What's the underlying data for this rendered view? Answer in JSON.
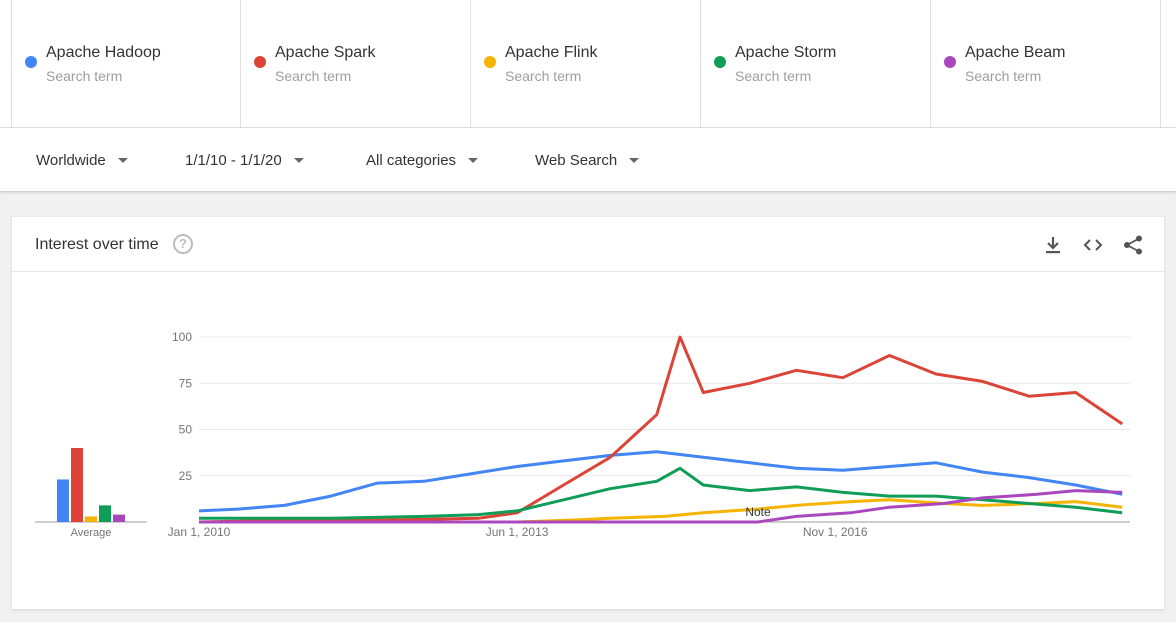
{
  "search_terms": [
    {
      "name": "Apache Hadoop",
      "sub": "Search term",
      "color": "#4285f4"
    },
    {
      "name": "Apache Spark",
      "sub": "Search term",
      "color": "#db4437"
    },
    {
      "name": "Apache Flink",
      "sub": "Search term",
      "color": "#f4b400"
    },
    {
      "name": "Apache Storm",
      "sub": "Search term",
      "color": "#0f9d58"
    },
    {
      "name": "Apache Beam",
      "sub": "Search term",
      "color": "#ab47bc"
    }
  ],
  "filters": {
    "region": "Worldwide",
    "date_range": "1/1/10 - 1/1/20",
    "category": "All categories",
    "search_type": "Web Search"
  },
  "card": {
    "title": "Interest over time",
    "help_icon": "help-circle-icon",
    "download_icon": "download-icon",
    "embed_icon": "embed-code-icon",
    "share_icon": "share-icon"
  },
  "chart_data": {
    "type": "line",
    "y_ticks": [
      "100",
      "75",
      "50",
      "25"
    ],
    "ylim": [
      0,
      100
    ],
    "x_tick_labels": [
      "Jan 1, 2010",
      "Jun 1, 2013",
      "Nov 1, 2016"
    ],
    "x_range": [
      "2010-01",
      "2020-01"
    ],
    "grid": true,
    "note_label": "Note",
    "average_label": "Average",
    "averages": [
      {
        "name": "Apache Hadoop",
        "value": 23
      },
      {
        "name": "Apache Spark",
        "value": 40
      },
      {
        "name": "Apache Flink",
        "value": 3
      },
      {
        "name": "Apache Storm",
        "value": 9
      },
      {
        "name": "Apache Beam",
        "value": 4
      }
    ],
    "series": [
      {
        "name": "Apache Hadoop",
        "color": "#4285f4",
        "points": [
          [
            "2010-01",
            6
          ],
          [
            "2010-06",
            7
          ],
          [
            "2010-12",
            9
          ],
          [
            "2011-06",
            14
          ],
          [
            "2011-12",
            21
          ],
          [
            "2012-06",
            22
          ],
          [
            "2012-12",
            26
          ],
          [
            "2013-06",
            30
          ],
          [
            "2013-12",
            33
          ],
          [
            "2014-06",
            36
          ],
          [
            "2014-12",
            38
          ],
          [
            "2015-06",
            35
          ],
          [
            "2015-12",
            32
          ],
          [
            "2016-06",
            29
          ],
          [
            "2016-12",
            28
          ],
          [
            "2017-06",
            30
          ],
          [
            "2017-12",
            32
          ],
          [
            "2018-06",
            27
          ],
          [
            "2018-12",
            24
          ],
          [
            "2019-06",
            20
          ],
          [
            "2019-12",
            15
          ]
        ]
      },
      {
        "name": "Apache Spark",
        "color": "#db4437",
        "points": [
          [
            "2010-01",
            0
          ],
          [
            "2011-01",
            1
          ],
          [
            "2012-01",
            1
          ],
          [
            "2013-01",
            2
          ],
          [
            "2013-06",
            5
          ],
          [
            "2013-12",
            20
          ],
          [
            "2014-06",
            35
          ],
          [
            "2014-12",
            58
          ],
          [
            "2015-03",
            100
          ],
          [
            "2015-06",
            70
          ],
          [
            "2015-12",
            75
          ],
          [
            "2016-06",
            82
          ],
          [
            "2016-12",
            78
          ],
          [
            "2017-06",
            90
          ],
          [
            "2017-12",
            80
          ],
          [
            "2018-06",
            76
          ],
          [
            "2018-12",
            68
          ],
          [
            "2019-06",
            70
          ],
          [
            "2019-12",
            53
          ]
        ]
      },
      {
        "name": "Apache Flink",
        "color": "#f4b400",
        "points": [
          [
            "2010-01",
            0
          ],
          [
            "2013-06",
            0
          ],
          [
            "2014-01",
            1
          ],
          [
            "2014-06",
            2
          ],
          [
            "2015-01",
            3
          ],
          [
            "2015-06",
            5
          ],
          [
            "2016-01",
            7
          ],
          [
            "2016-06",
            9
          ],
          [
            "2017-01",
            11
          ],
          [
            "2017-06",
            12
          ],
          [
            "2018-01",
            10
          ],
          [
            "2018-06",
            9
          ],
          [
            "2019-01",
            10
          ],
          [
            "2019-06",
            11
          ],
          [
            "2019-12",
            8
          ]
        ]
      },
      {
        "name": "Apache Storm",
        "color": "#0f9d58",
        "points": [
          [
            "2010-01",
            2
          ],
          [
            "2011-06",
            2
          ],
          [
            "2012-06",
            3
          ],
          [
            "2013-01",
            4
          ],
          [
            "2013-06",
            6
          ],
          [
            "2013-12",
            12
          ],
          [
            "2014-06",
            18
          ],
          [
            "2014-12",
            22
          ],
          [
            "2015-03",
            29
          ],
          [
            "2015-06",
            20
          ],
          [
            "2015-12",
            17
          ],
          [
            "2016-06",
            19
          ],
          [
            "2016-12",
            16
          ],
          [
            "2017-06",
            14
          ],
          [
            "2017-12",
            14
          ],
          [
            "2018-06",
            12
          ],
          [
            "2018-12",
            10
          ],
          [
            "2019-06",
            8
          ],
          [
            "2019-12",
            5
          ]
        ]
      },
      {
        "name": "Apache Beam",
        "color": "#ab47bc",
        "points": [
          [
            "2010-01",
            0
          ],
          [
            "2016-01",
            0
          ],
          [
            "2016-06",
            3
          ],
          [
            "2017-01",
            5
          ],
          [
            "2017-06",
            8
          ],
          [
            "2018-01",
            10
          ],
          [
            "2018-06",
            13
          ],
          [
            "2019-01",
            15
          ],
          [
            "2019-06",
            17
          ],
          [
            "2019-12",
            16
          ]
        ]
      }
    ]
  }
}
